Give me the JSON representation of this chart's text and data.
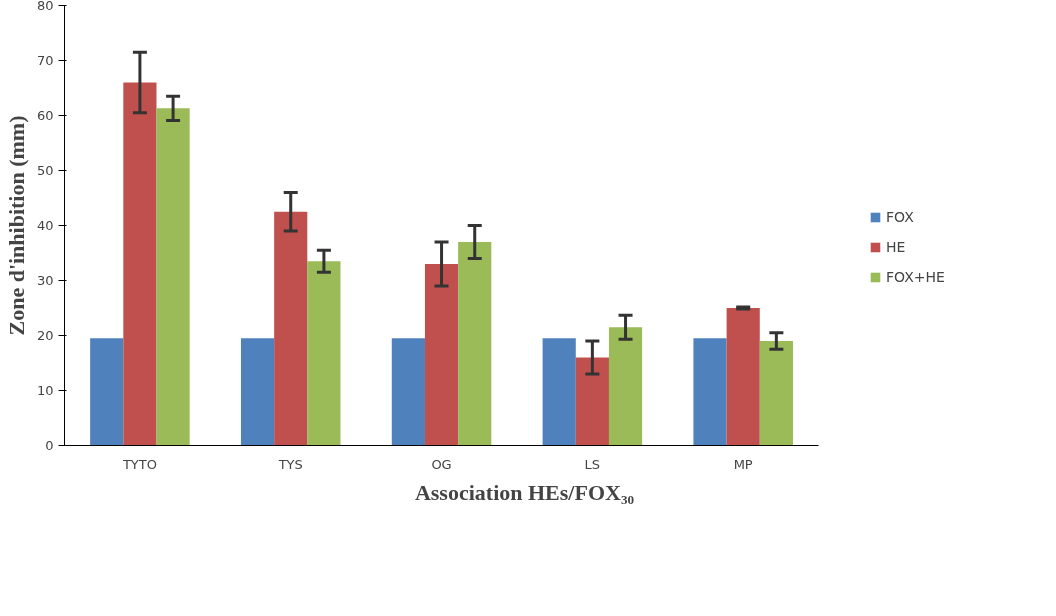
{
  "chart_data": {
    "type": "bar",
    "xlabel": "Association HEs/FOX₃₀",
    "ylabel": "Zone d'inhibition (mm)",
    "categories": [
      "TYTO",
      "TYS",
      "OG",
      "LS",
      "MP"
    ],
    "series": [
      {
        "name": "FOX",
        "color": "#4f81bd",
        "values": [
          19.5,
          19.5,
          19.5,
          19.5,
          19.5
        ]
      },
      {
        "name": "HE",
        "color": "#c0504d",
        "values": [
          66,
          42.5,
          33,
          16,
          25
        ],
        "errors": [
          5.5,
          3.5,
          4,
          3,
          0.2
        ]
      },
      {
        "name": "FOX+HE",
        "color": "#9bbb59",
        "values": [
          61.3,
          33.5,
          37,
          21.5,
          19
        ],
        "errors": [
          2.2,
          2,
          3,
          2.2,
          1.5
        ]
      }
    ],
    "ylim": [
      0,
      80
    ],
    "yticks": [
      0,
      10,
      20,
      30,
      40,
      50,
      60,
      70,
      80
    ],
    "grid": false,
    "legend": "right"
  }
}
